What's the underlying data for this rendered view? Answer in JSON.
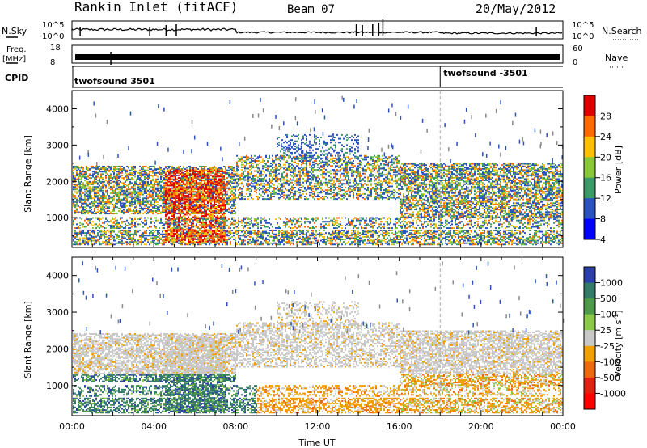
{
  "header": {
    "station": "Rankin Inlet (fitACF)",
    "beam": "Beam 07",
    "date": "20/May/2012"
  },
  "top_panels": {
    "nsky_label": "N.Sky",
    "nsky_ticks": [
      "10^5",
      "10^0"
    ],
    "nsearch_label": "N.Search",
    "nsearch_ticks": [
      "10^5",
      "10^0"
    ],
    "freq_label": "Freq.",
    "freq_unit": "[MHz]",
    "freq_ticks": [
      "18",
      "8"
    ],
    "nave_label": "Nave",
    "nave_ticks": [
      "60",
      "0"
    ],
    "cpid_label": "CPID",
    "cpid_entries": [
      {
        "text": "twofsound 3501",
        "start_hour": 0
      },
      {
        "text": "twofsound -3501",
        "start_hour": 18
      }
    ]
  },
  "chart_data": [
    {
      "type": "heatmap",
      "name": "power-panel",
      "ylabel": "Slant Range [km]",
      "yticks": [
        1000,
        2000,
        3000,
        4000
      ],
      "ylim": [
        180,
        4500
      ],
      "colorbar_title": "Power [dB]",
      "colorbar_ticks": [
        "28",
        "24",
        "20",
        "16",
        "12",
        "8",
        "4"
      ],
      "colorbar_colors": [
        "#e00000",
        "#ff6a00",
        "#ffc000",
        "#88c838",
        "#3a9a68",
        "#2c52bd",
        "#0000ff"
      ],
      "x_hours": [
        0,
        24
      ]
    },
    {
      "type": "heatmap",
      "name": "velocity-panel",
      "ylabel": "Slant Range [km]",
      "yticks": [
        1000,
        2000,
        3000,
        4000
      ],
      "ylim": [
        180,
        4500
      ],
      "colorbar_title": "Velocity [m s",
      "colorbar_title_sup": "-1",
      "colorbar_title_end": "]",
      "colorbar_ticks": [
        "1000",
        "500",
        "100",
        "25",
        "-25",
        "-100",
        "-500",
        "-1000"
      ],
      "colorbar_colors": [
        "#2c3ea8",
        "#347a68",
        "#4e9a4a",
        "#8ac84a",
        "#c8c8c8",
        "#f0a000",
        "#ee6a10",
        "#e02010",
        "#ff0000"
      ],
      "xticks": [
        "00:00",
        "04:00",
        "08:00",
        "12:00",
        "16:00",
        "20:00",
        "00:00"
      ],
      "xlabel": "Time UT"
    }
  ]
}
